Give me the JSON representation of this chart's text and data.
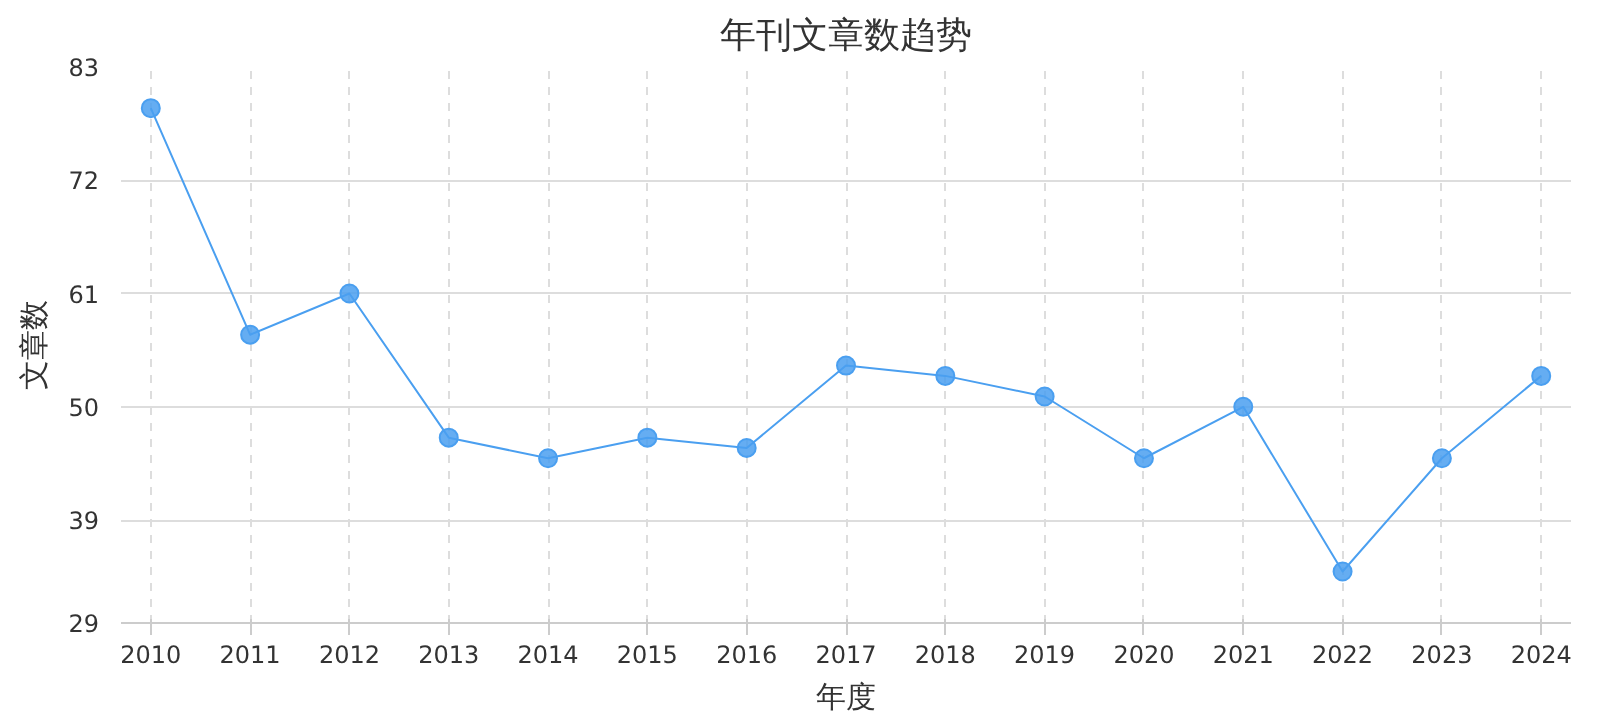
{
  "chart_data": {
    "type": "line",
    "title": "年刊文章数趋势",
    "xlabel": "年度",
    "ylabel": "文章数",
    "categories": [
      "2010",
      "2011",
      "2012",
      "2013",
      "2014",
      "2015",
      "2016",
      "2017",
      "2018",
      "2019",
      "2020",
      "2021",
      "2022",
      "2023",
      "2024"
    ],
    "series": [
      {
        "color": "#4a9ff0",
        "values": [
          79,
          57,
          61,
          47,
          45,
          47,
          46,
          54,
          53,
          51,
          45,
          50,
          34,
          45,
          53
        ]
      }
    ],
    "ylim": [
      29,
      83
    ],
    "yticks": [
      29,
      39,
      50,
      61,
      72,
      83
    ],
    "grid": true,
    "marker": "circle",
    "line_style": "solid"
  }
}
